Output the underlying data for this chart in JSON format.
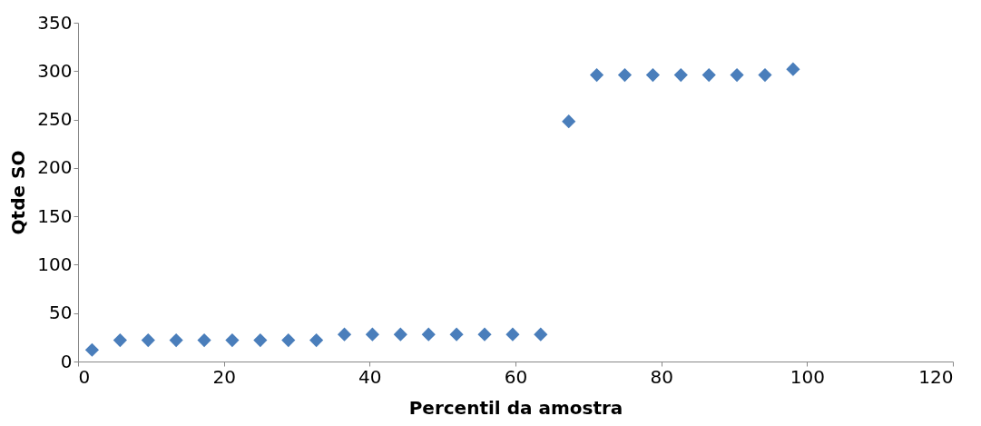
{
  "chart_data": {
    "type": "scatter",
    "xlabel": "Percentil da amostra",
    "ylabel": "Qtde SO",
    "x": [
      1.92,
      5.77,
      9.62,
      13.46,
      17.31,
      21.15,
      25,
      28.85,
      32.69,
      36.54,
      40.38,
      44.23,
      48.08,
      51.92,
      55.77,
      59.62,
      63.46,
      67.31,
      71.15,
      75,
      78.85,
      82.69,
      86.54,
      90.38,
      94.23,
      98.08
    ],
    "series": [
      {
        "color": "#4a7ebb",
        "values": [
          12,
          22,
          22,
          22,
          22,
          22,
          22,
          22,
          22,
          28,
          28,
          28,
          28,
          28,
          28,
          28,
          28,
          248,
          296,
          296,
          296,
          296,
          296,
          296,
          296,
          302
        ]
      }
    ],
    "xlim": [
      0,
      120
    ],
    "xticks": [
      0,
      20,
      40,
      60,
      80,
      100,
      120
    ],
    "ylim": [
      0,
      350
    ],
    "yticks": [
      0,
      50,
      100,
      150,
      200,
      250,
      300,
      350
    ],
    "marker": "diamond",
    "grid": false
  }
}
